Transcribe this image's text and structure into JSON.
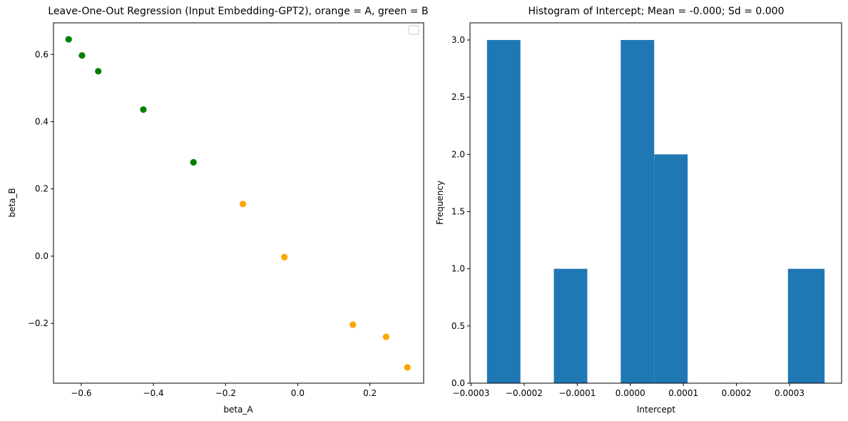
{
  "chart_data": [
    {
      "type": "scatter",
      "title": "Leave-One-Out Regression (Input Embedding-GPT2), orange = A, green = B",
      "xlabel": "beta_A",
      "ylabel": "beta_B",
      "xlim": [
        -0.677,
        0.349
      ],
      "ylim": [
        -0.378,
        0.694
      ],
      "xticks": [
        -0.6,
        -0.4,
        -0.2,
        0.0,
        0.2
      ],
      "xtick_labels": [
        "−0.6",
        "−0.4",
        "−0.2",
        "0.0",
        "0.2"
      ],
      "yticks": [
        -0.2,
        0.0,
        0.2,
        0.4,
        0.6
      ],
      "ytick_labels": [
        "−0.2",
        "0.0",
        "0.2",
        "0.4",
        "0.6"
      ],
      "legend": "top-right (empty)",
      "grid": false,
      "points": [
        {
          "x": -0.635,
          "y": 0.645,
          "color": "#008000"
        },
        {
          "x": -0.598,
          "y": 0.597,
          "color": "#008000"
        },
        {
          "x": -0.553,
          "y": 0.55,
          "color": "#008000"
        },
        {
          "x": -0.428,
          "y": 0.436,
          "color": "#008000"
        },
        {
          "x": -0.289,
          "y": 0.279,
          "color": "#008000"
        },
        {
          "x": -0.152,
          "y": 0.155,
          "color": "#ffa500"
        },
        {
          "x": -0.037,
          "y": -0.003,
          "color": "#ffa500"
        },
        {
          "x": 0.153,
          "y": -0.204,
          "color": "#ffa500"
        },
        {
          "x": 0.245,
          "y": -0.24,
          "color": "#ffa500"
        },
        {
          "x": 0.304,
          "y": -0.331,
          "color": "#ffa500"
        }
      ]
    },
    {
      "type": "bar",
      "title": "Histogram of Intercept; Mean = -0.000; Sd = 0.000",
      "xlabel": "Intercept",
      "ylabel": "Frequency",
      "xlim": [
        -0.000302,
        0.000398
      ],
      "ylim": [
        0.0,
        3.15
      ],
      "xticks": [
        -0.0003,
        -0.0002,
        -0.0001,
        0.0,
        0.0001,
        0.0002,
        0.0003
      ],
      "xtick_labels": [
        "−0.0003",
        "−0.0002",
        "−0.0001",
        "0.0000",
        "0.0001",
        "0.0002",
        "0.0003"
      ],
      "yticks": [
        0.0,
        0.5,
        1.0,
        1.5,
        2.0,
        2.5,
        3.0
      ],
      "ytick_labels": [
        "0.0",
        "0.5",
        "1.0",
        "1.5",
        "2.0",
        "2.5",
        "3.0"
      ],
      "bar_color": "#1f77b4",
      "bin_edges": [
        -0.00027,
        -0.000207,
        -0.000144,
        -8.1e-05,
        -1.8e-05,
        4.5e-05,
        0.000108,
        0.000171,
        0.000234,
        0.000297,
        0.000366
      ],
      "counts": [
        3,
        0,
        1,
        0,
        3,
        2,
        0,
        0,
        0,
        1
      ]
    }
  ]
}
